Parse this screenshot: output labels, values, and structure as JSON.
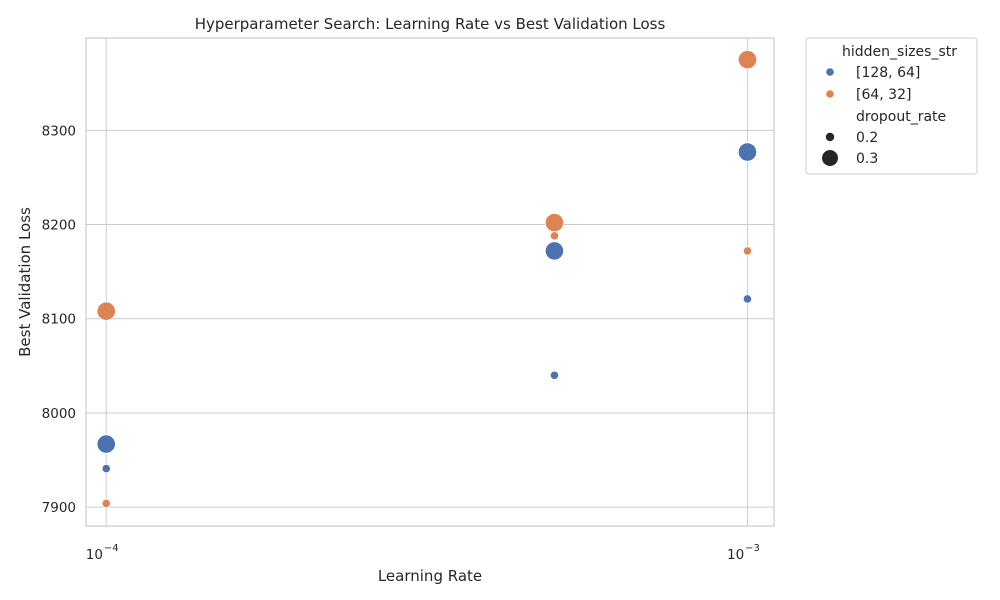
{
  "chart_data": {
    "type": "scatter",
    "title": "Hyperparameter Search: Learning Rate vs Best Validation Loss",
    "xlabel": "Learning Rate",
    "ylabel": "Best Validation Loss",
    "x_scale": "log",
    "xlim": [
      9.3e-05,
      0.0011
    ],
    "ylim": [
      7880,
      8398
    ],
    "x_ticks": [
      {
        "value": 0.0001,
        "base": "10",
        "exp": "−4"
      },
      {
        "value": 0.001,
        "base": "10",
        "exp": "−3"
      }
    ],
    "y_ticks": [
      {
        "value": 7900,
        "label": "7900"
      },
      {
        "value": 8000,
        "label": "8000"
      },
      {
        "value": 8100,
        "label": "8100"
      },
      {
        "value": 8200,
        "label": "8200"
      },
      {
        "value": 8300,
        "label": "8300"
      }
    ],
    "grid": true,
    "legend_position": "outside-right",
    "hue": {
      "title": "hidden_sizes_str",
      "entries": [
        {
          "label": "[128, 64]",
          "color": "#4c72b0"
        },
        {
          "label": "[64, 32]",
          "color": "#dd8452"
        }
      ]
    },
    "size": {
      "title": "dropout_rate",
      "entries": [
        {
          "label": "0.2",
          "value": 0.2
        },
        {
          "label": "0.3",
          "value": 0.3
        }
      ]
    },
    "points": [
      {
        "x": 0.0001,
        "y": 7967,
        "hidden_sizes_str": "[128, 64]",
        "dropout_rate": 0.3
      },
      {
        "x": 0.0001,
        "y": 7941,
        "hidden_sizes_str": "[128, 64]",
        "dropout_rate": 0.2
      },
      {
        "x": 0.0001,
        "y": 8108,
        "hidden_sizes_str": "[64, 32]",
        "dropout_rate": 0.3
      },
      {
        "x": 0.0001,
        "y": 7904,
        "hidden_sizes_str": "[64, 32]",
        "dropout_rate": 0.2
      },
      {
        "x": 0.0005,
        "y": 8172,
        "hidden_sizes_str": "[128, 64]",
        "dropout_rate": 0.3
      },
      {
        "x": 0.0005,
        "y": 8040,
        "hidden_sizes_str": "[128, 64]",
        "dropout_rate": 0.2
      },
      {
        "x": 0.0005,
        "y": 8202,
        "hidden_sizes_str": "[64, 32]",
        "dropout_rate": 0.3
      },
      {
        "x": 0.0005,
        "y": 8188,
        "hidden_sizes_str": "[64, 32]",
        "dropout_rate": 0.2
      },
      {
        "x": 0.001,
        "y": 8277,
        "hidden_sizes_str": "[128, 64]",
        "dropout_rate": 0.3
      },
      {
        "x": 0.001,
        "y": 8121,
        "hidden_sizes_str": "[128, 64]",
        "dropout_rate": 0.2
      },
      {
        "x": 0.001,
        "y": 8375,
        "hidden_sizes_str": "[64, 32]",
        "dropout_rate": 0.3
      },
      {
        "x": 0.001,
        "y": 8172,
        "hidden_sizes_str": "[64, 32]",
        "dropout_rate": 0.2
      }
    ]
  }
}
